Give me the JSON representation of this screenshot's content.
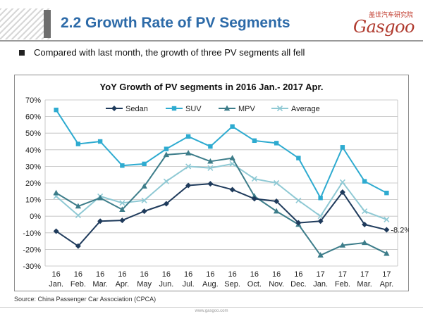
{
  "header": {
    "title": "2.2 Growth Rate of PV Segments",
    "logo_cn": "盖世汽车研究院",
    "logo_main": "Gasgoo"
  },
  "bullet": "Compared with last month, the growth of three PV segments all fell",
  "source": "Source: China Passenger Car Association (CPCA)",
  "footer_url": "www.gasgoo.com",
  "chart_data": {
    "type": "line",
    "title": "YoY Growth of PV segments in 2016 Jan.- 2017 Apr.",
    "categories": [
      [
        "16",
        "Jan."
      ],
      [
        "16",
        "Feb."
      ],
      [
        "16",
        "Mar."
      ],
      [
        "16",
        "Apr."
      ],
      [
        "16",
        "May"
      ],
      [
        "16",
        "Jun."
      ],
      [
        "16",
        "Jul."
      ],
      [
        "16",
        "Aug."
      ],
      [
        "16",
        "Sep."
      ],
      [
        "16",
        "Oct."
      ],
      [
        "16",
        "Nov."
      ],
      [
        "16",
        "Dec."
      ],
      [
        "17",
        "Jan."
      ],
      [
        "17",
        "Feb."
      ],
      [
        "17",
        "Mar."
      ],
      [
        "17",
        "Apr."
      ]
    ],
    "y_ticks": [
      "-30%",
      "-20%",
      "-10%",
      "0%",
      "10%",
      "20%",
      "30%",
      "40%",
      "50%",
      "60%",
      "70%"
    ],
    "ylim": [
      -30,
      70
    ],
    "y_unit": "%",
    "grid": true,
    "legend_position": "top",
    "series": [
      {
        "name": "Sedan",
        "color": "#1f3b5c",
        "marker": "diamond",
        "values": [
          -9,
          -18,
          -3,
          -2.5,
          3,
          7.5,
          18.5,
          19.5,
          16,
          10.5,
          9,
          -4,
          -3,
          14.5,
          -5,
          -8.2
        ]
      },
      {
        "name": "SUV",
        "color": "#2eabd0",
        "marker": "square",
        "values": [
          64,
          43.5,
          45,
          30.5,
          31.5,
          40.5,
          48,
          42,
          54,
          45.5,
          44,
          35,
          11,
          41.5,
          21,
          14
        ]
      },
      {
        "name": "MPV",
        "color": "#3d7d8a",
        "marker": "triangle",
        "values": [
          14,
          6,
          11,
          4,
          18,
          37,
          38,
          33,
          35,
          12,
          3,
          -5,
          -23.5,
          -17.5,
          -16,
          -22.5
        ]
      },
      {
        "name": "Average",
        "color": "#8fc9d4",
        "marker": "x",
        "values": [
          12,
          0.5,
          12,
          8,
          9.5,
          21,
          30,
          29,
          31.5,
          22.5,
          20,
          9.5,
          0,
          20.5,
          3,
          -2
        ]
      }
    ],
    "annotations": [
      {
        "series": "Sedan",
        "index": 15,
        "text": "-8.2%"
      }
    ]
  }
}
